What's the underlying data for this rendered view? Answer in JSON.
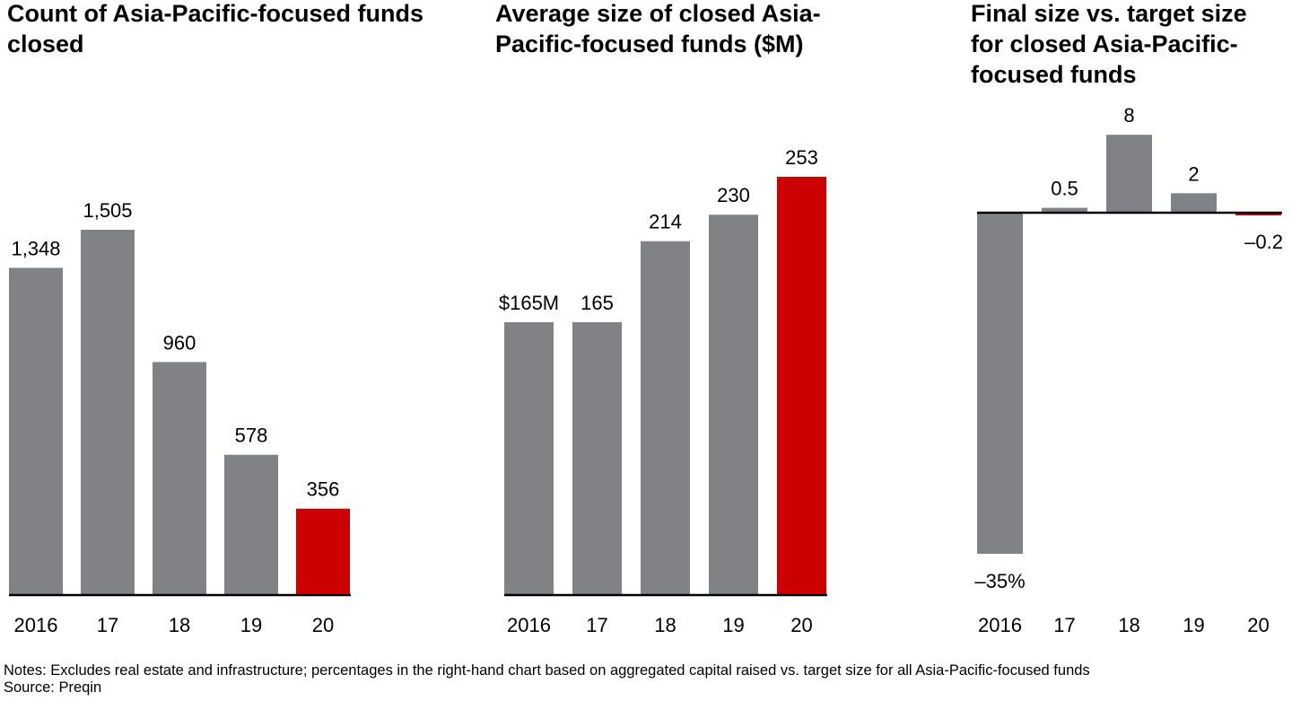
{
  "colors": {
    "bar": "#808285",
    "highlight": "#cc0000",
    "axis": "#000000"
  },
  "chart_data": [
    {
      "type": "bar",
      "title": "Count of Asia-Pacific-focused funds closed",
      "categories": [
        "2016",
        "17",
        "18",
        "19",
        "20"
      ],
      "values": [
        1348,
        1505,
        960,
        578,
        356
      ],
      "labels": [
        "1,348",
        "1,505",
        "960",
        "578",
        "356"
      ],
      "highlight_index": 4,
      "ylim": [
        0,
        1700
      ]
    },
    {
      "type": "bar",
      "title": "Average size of closed Asia-Pacific-focused funds ($M)",
      "categories": [
        "2016",
        "17",
        "18",
        "19",
        "20"
      ],
      "values": [
        165,
        165,
        214,
        230,
        253
      ],
      "labels": [
        "$165M",
        "165",
        "214",
        "230",
        "253"
      ],
      "highlight_index": 4,
      "ylim": [
        0,
        300
      ]
    },
    {
      "type": "bar",
      "title": "Final size vs. target size for closed Asia-Pacific-focused funds",
      "categories": [
        "2016",
        "17",
        "18",
        "19",
        "20"
      ],
      "values": [
        -35,
        0.5,
        8,
        2,
        -0.2
      ],
      "labels": [
        "–35%",
        "0.5",
        "8",
        "2",
        "–0.2"
      ],
      "highlight_index": 4,
      "ylim": [
        -35,
        8
      ]
    }
  ],
  "notes": {
    "line1": "Notes: Excludes real estate and infrastructure; percentages in the right-hand chart based on aggregated capital raised vs. target size for all Asia-Pacific-focused funds",
    "line2": "Source: Preqin"
  }
}
